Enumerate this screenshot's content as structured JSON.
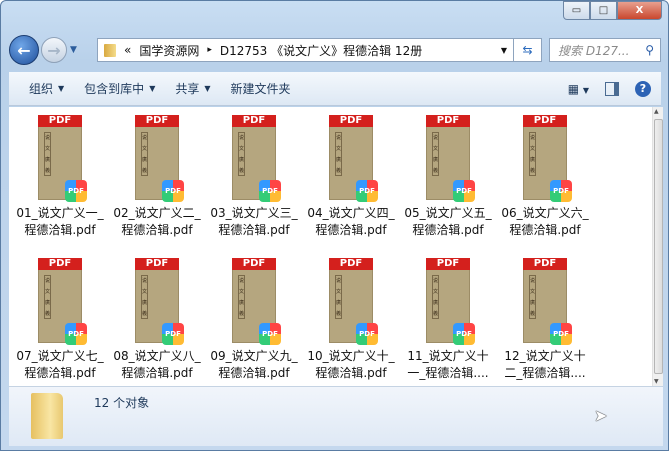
{
  "window": {
    "minimize": "▭",
    "maximize": "□",
    "close": "X"
  },
  "address": {
    "prefix": "«",
    "crumbs": [
      "国学资源网",
      "D12753 《说文广义》程德洽辑 12册"
    ],
    "separator": "▸"
  },
  "search": {
    "placeholder": "搜索 D127..."
  },
  "toolbar": {
    "organize": "组织",
    "include_library": "包含到库中",
    "share": "共享",
    "new_folder": "新建文件夹"
  },
  "files": [
    {
      "name": "01_说文广义一_\n程德洽辑.pdf"
    },
    {
      "name": "02_说文广义二_\n程德洽辑.pdf"
    },
    {
      "name": "03_说文广义三_\n程德洽辑.pdf"
    },
    {
      "name": "04_说文广义四_\n程德洽辑.pdf"
    },
    {
      "name": "05_说文广义五_\n程德洽辑.pdf"
    },
    {
      "name": "06_说文广义六_\n程德洽辑.pdf"
    },
    {
      "name": "07_说文广义七_\n程德洽辑.pdf"
    },
    {
      "name": "08_说文广义八_\n程德洽辑.pdf"
    },
    {
      "name": "09_说文广义九_\n程德洽辑.pdf"
    },
    {
      "name": "10_说文广义十_\n程德洽辑.pdf"
    },
    {
      "name": "11_说文广义十\n一_程德洽辑...."
    },
    {
      "name": "12_说文广义十\n二_程德洽辑...."
    }
  ],
  "icon": {
    "header": "PDF",
    "badge": "PDF",
    "cover": "说文廣義"
  },
  "details": {
    "count": "12 个对象"
  }
}
